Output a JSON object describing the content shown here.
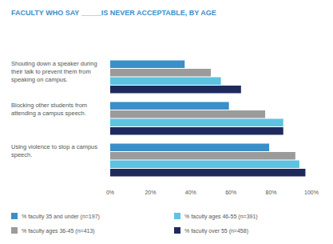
{
  "chart_data": {
    "type": "bar",
    "orientation": "horizontal",
    "title": "FACULTY WHO SAY _____IS NEVER ACCEPTABLE, BY AGE",
    "categories": [
      "Shouting down a speaker during their talk to prevent them from speaking on campus.",
      "Blocking other students from attending a campus speech.",
      "Using violence to stop a campus speech."
    ],
    "series": [
      {
        "name": "% faculty 35 and under (n=197)",
        "color": "#3a8fc9",
        "values": [
          37,
          59,
          79
        ]
      },
      {
        "name": "% faculty ages 36-45 (n=413)",
        "color": "#9b9b9b",
        "values": [
          50,
          77,
          92
        ]
      },
      {
        "name": "% faculty ages 46-55 (n=391)",
        "color": "#5cc3e2",
        "values": [
          55,
          86,
          94
        ]
      },
      {
        "name": "% faculty over 55 (n=458)",
        "color": "#1f2a5c",
        "values": [
          65,
          86,
          97
        ]
      }
    ],
    "xlim": [
      0,
      100
    ],
    "xticks": [
      {
        "value": 0,
        "label": "0%"
      },
      {
        "value": 20,
        "label": "20%"
      },
      {
        "value": 40,
        "label": "40%"
      },
      {
        "value": 60,
        "label": "60%"
      },
      {
        "value": 80,
        "label": "80%"
      },
      {
        "value": 100,
        "label": "100%"
      }
    ],
    "grid": false,
    "legend": "bottom"
  }
}
